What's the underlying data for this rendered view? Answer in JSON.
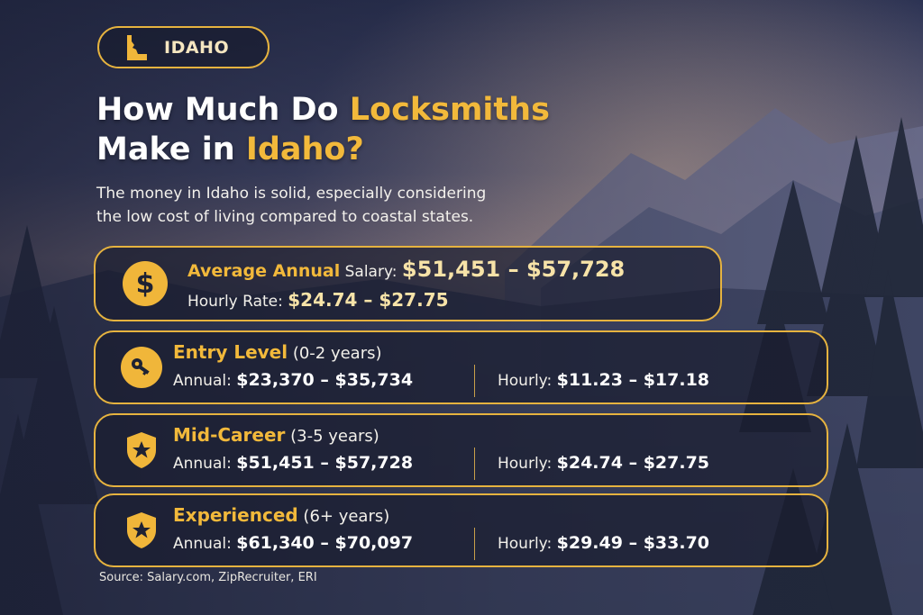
{
  "badge": {
    "state_label": "IDAHO",
    "icon": "idaho-state-icon"
  },
  "headline": {
    "line1_prefix": "How Much Do ",
    "line1_accent": "Locksmiths",
    "line2_prefix": "Make in ",
    "line2_accent": "Idaho?"
  },
  "subtitle": {
    "line1": "The money in Idaho is solid, especially considering",
    "line2": "the low cost of living compared to coastal states."
  },
  "average": {
    "icon": "dollar-coin-icon",
    "dollar_glyph": "$",
    "annual_label_strong": "Average Annual",
    "annual_label_light": " Salary: ",
    "annual_value": "$51,451 – $57,728",
    "hourly_label": "Hourly Rate: ",
    "hourly_value": "$24.74 – $27.75"
  },
  "tiers": [
    {
      "icon": "key-icon",
      "name": "Entry Level",
      "years": " (0-2 years)",
      "annual_label": "Annual: ",
      "annual_value": "$23,370 – $35,734",
      "hourly_label": "Hourly: ",
      "hourly_value": "$11.23 – $17.18"
    },
    {
      "icon": "shield-star-icon",
      "name": "Mid-Career",
      "years": " (3-5 years)",
      "annual_label": "Annual: ",
      "annual_value": "$51,451 – $57,728",
      "hourly_label": "Hourly: ",
      "hourly_value": "$24.74 – $27.75"
    },
    {
      "icon": "shield-star-icon",
      "name": "Experienced",
      "years": " (6+ years)",
      "annual_label": "Annual: ",
      "annual_value": "$61,340 – $70,097",
      "hourly_label": "Hourly: ",
      "hourly_value": "$29.49 – $33.70"
    }
  ],
  "source": "Source: Salary.com, ZipRecruiter, ERI",
  "colors": {
    "accent": "#f2b93b",
    "border": "#e6b33f",
    "background": "#2f354d"
  }
}
